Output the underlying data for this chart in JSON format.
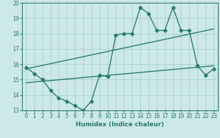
{
  "xlabel": "Humidex (Indice chaleur)",
  "xlim": [
    -0.5,
    23.5
  ],
  "ylim": [
    13,
    20
  ],
  "yticks": [
    13,
    14,
    15,
    16,
    17,
    18,
    19,
    20
  ],
  "xticks": [
    0,
    1,
    2,
    3,
    4,
    5,
    6,
    7,
    8,
    9,
    10,
    11,
    12,
    13,
    14,
    15,
    16,
    17,
    18,
    19,
    20,
    21,
    22,
    23
  ],
  "main_x": [
    0,
    1,
    2,
    3,
    4,
    5,
    6,
    7,
    8,
    9,
    10,
    11,
    12,
    13,
    14,
    15,
    16,
    17,
    18,
    19,
    20,
    21,
    22,
    23
  ],
  "main_y": [
    15.8,
    15.4,
    15.0,
    14.3,
    13.8,
    13.6,
    13.3,
    13.0,
    13.6,
    15.3,
    15.2,
    17.9,
    18.0,
    18.0,
    19.7,
    19.3,
    18.2,
    18.2,
    19.7,
    18.2,
    18.2,
    15.9,
    15.3,
    15.7
  ],
  "trend1_x": [
    0,
    23
  ],
  "trend1_y": [
    15.7,
    18.3
  ],
  "trend2_x": [
    0,
    23
  ],
  "trend2_y": [
    14.8,
    15.9
  ],
  "line_color": "#2a7a6a",
  "bg_color": "#cce8e8",
  "grid_color": "#aacece",
  "marker": "D",
  "marker_size": 2.5,
  "linewidth": 1.0,
  "tick_fontsize": 5.5,
  "xlabel_fontsize": 6.5
}
